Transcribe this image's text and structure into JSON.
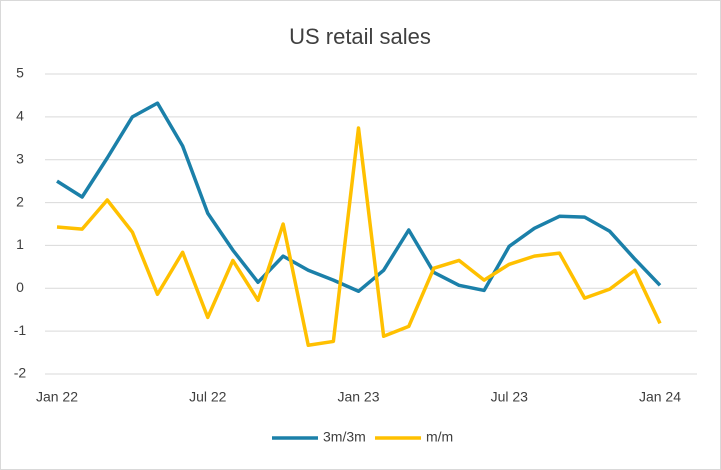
{
  "chart_data": {
    "type": "line",
    "title": "US retail sales",
    "categories": [
      "Jan 22",
      null,
      null,
      null,
      null,
      null,
      "Jul 22",
      null,
      null,
      null,
      null,
      null,
      "Jan 23",
      null,
      null,
      null,
      null,
      null,
      "Jul 23",
      null,
      null,
      null,
      null,
      null,
      "Jan 24"
    ],
    "series": [
      {
        "name": "3m/3m",
        "color": "#1b80a9",
        "values": [
          2.5,
          2.13,
          3.04,
          4.0,
          4.32,
          3.32,
          1.75,
          0.89,
          0.14,
          0.75,
          0.42,
          0.19,
          -0.07,
          0.42,
          1.36,
          0.37,
          0.07,
          -0.05,
          0.98,
          1.4,
          1.68,
          1.66,
          1.33,
          0.68,
          0.07
        ]
      },
      {
        "name": "m/m",
        "color": "#ffc000",
        "values": [
          1.43,
          1.38,
          2.06,
          1.31,
          -0.14,
          0.84,
          -0.68,
          0.65,
          -0.28,
          1.5,
          -1.33,
          -1.24,
          3.74,
          -1.12,
          -0.89,
          0.47,
          0.65,
          0.19,
          0.56,
          0.75,
          0.82,
          -0.23,
          -0.02,
          0.42,
          -0.82
        ]
      }
    ],
    "ylim": [
      -2,
      5
    ],
    "yticks": [
      -2,
      -1,
      0,
      1,
      2,
      3,
      4,
      5
    ],
    "grid": true,
    "legend": "bottom"
  }
}
